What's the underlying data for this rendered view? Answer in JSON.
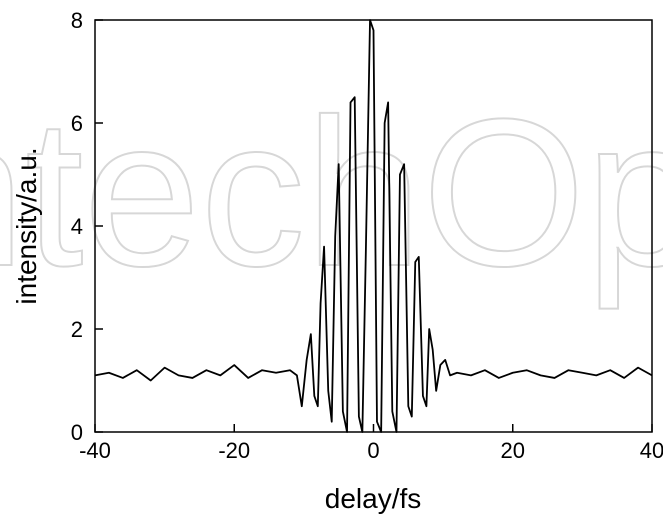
{
  "chart_data": {
    "type": "line",
    "title": "",
    "xlabel": "delay/fs",
    "ylabel": "intensity/a.u.",
    "xlim": [
      -40,
      40
    ],
    "ylim": [
      0,
      8
    ],
    "x_ticks": [
      -40,
      -20,
      0,
      20,
      40
    ],
    "y_ticks": [
      0,
      2,
      4,
      6,
      8
    ],
    "grid": false,
    "legend": "none",
    "line_color": "#000000",
    "watermark": "IntechOpen",
    "series": [
      {
        "x": [
          -40,
          -38,
          -36,
          -34,
          -32,
          -30,
          -28,
          -26,
          -24,
          -22,
          -20,
          -18,
          -16,
          -14,
          -12,
          -11,
          -10.3,
          -9.6,
          -9.0,
          -8.5,
          -8.0,
          -7.6,
          -7.1,
          -6.5,
          -6.0,
          -5.5,
          -5.0,
          -4.4,
          -3.8,
          -3.3,
          -2.7,
          -2.1,
          -1.6,
          -1.1,
          -0.5,
          0.0,
          0.5,
          1.1,
          1.6,
          2.1,
          2.7,
          3.3,
          3.8,
          4.4,
          5.0,
          5.5,
          6.0,
          6.5,
          7.1,
          7.6,
          8.0,
          8.5,
          9.0,
          9.6,
          10.3,
          11,
          12,
          14,
          16,
          18,
          20,
          22,
          24,
          26,
          28,
          30,
          32,
          34,
          36,
          38,
          40
        ],
        "y": [
          1.1,
          1.15,
          1.05,
          1.2,
          1.0,
          1.25,
          1.1,
          1.05,
          1.2,
          1.1,
          1.3,
          1.05,
          1.2,
          1.15,
          1.2,
          1.1,
          0.5,
          1.4,
          1.9,
          0.7,
          0.5,
          2.5,
          3.6,
          0.8,
          0.2,
          3.8,
          5.2,
          0.4,
          0.0,
          6.4,
          6.5,
          0.3,
          0.0,
          3.5,
          8.0,
          7.8,
          0.2,
          0.0,
          6.0,
          6.4,
          0.4,
          0.0,
          5.0,
          5.2,
          0.5,
          0.3,
          3.3,
          3.4,
          0.7,
          0.5,
          2.0,
          1.6,
          0.8,
          1.3,
          1.4,
          1.1,
          1.15,
          1.1,
          1.2,
          1.05,
          1.15,
          1.2,
          1.1,
          1.05,
          1.2,
          1.15,
          1.1,
          1.2,
          1.05,
          1.25,
          1.1
        ]
      }
    ]
  }
}
